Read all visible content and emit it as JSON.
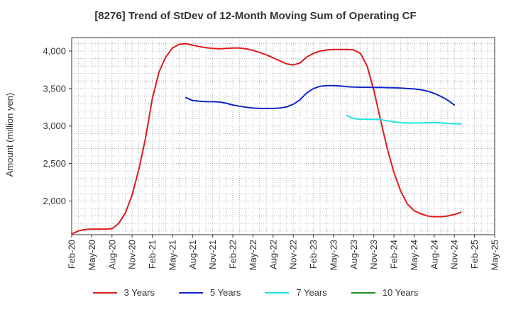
{
  "chart_data": {
    "type": "line",
    "title": "[8276]  Trend of StDev of 12-Month Moving Sum of Operating CF",
    "ylabel": "Amount (million yen)",
    "xlabel": "",
    "ylim": [
      1550,
      4180
    ],
    "yticks": [
      2000,
      2500,
      3000,
      3500,
      4000
    ],
    "ytick_labels": [
      "2,000",
      "2,500",
      "3,000",
      "3,500",
      "4,000"
    ],
    "xtick_labels": [
      "Feb-20",
      "May-20",
      "Aug-20",
      "Nov-20",
      "Feb-21",
      "May-21",
      "Aug-21",
      "Nov-21",
      "Feb-22",
      "May-22",
      "Aug-22",
      "Nov-22",
      "Feb-23",
      "May-23",
      "Aug-23",
      "Nov-23",
      "Feb-24",
      "May-24",
      "Aug-24",
      "Nov-24",
      "Feb-25",
      "May-25"
    ],
    "grid": true,
    "legend_position": "bottom",
    "series": [
      {
        "name": "3 Years",
        "color": "#dd1c1c",
        "start": "Feb-20",
        "values": [
          1560,
          1600,
          1620,
          1625,
          1625,
          1625,
          1630,
          1700,
          1840,
          2080,
          2420,
          2840,
          3360,
          3720,
          3920,
          4040,
          4090,
          4100,
          4080,
          4060,
          4045,
          4035,
          4030,
          4035,
          4040,
          4040,
          4030,
          4010,
          3980,
          3950,
          3910,
          3870,
          3830,
          3815,
          3840,
          3920,
          3970,
          4000,
          4015,
          4020,
          4022,
          4022,
          4015,
          3970,
          3800,
          3480,
          3080,
          2700,
          2380,
          2130,
          1960,
          1870,
          1830,
          1800,
          1790,
          1790,
          1800,
          1820,
          1850
        ]
      },
      {
        "name": "5 Years",
        "color": "#1426c8",
        "start": "Jul-21",
        "values": [
          3380,
          3340,
          3330,
          3325,
          3325,
          3320,
          3305,
          3280,
          3265,
          3250,
          3240,
          3235,
          3235,
          3235,
          3240,
          3255,
          3290,
          3350,
          3440,
          3500,
          3530,
          3540,
          3540,
          3535,
          3525,
          3520,
          3518,
          3518,
          3515,
          3515,
          3512,
          3510,
          3505,
          3500,
          3495,
          3485,
          3465,
          3435,
          3395,
          3345,
          3280
        ]
      },
      {
        "name": "7 Years",
        "color": "#22e4e4",
        "start": "Jul-23",
        "values": [
          3140,
          3100,
          3090,
          3090,
          3090,
          3085,
          3070,
          3055,
          3045,
          3040,
          3040,
          3040,
          3045,
          3045,
          3042,
          3035,
          3030,
          3030
        ]
      },
      {
        "name": "10 Years",
        "color": "#228b22",
        "start": "Feb-25",
        "values": []
      }
    ]
  }
}
